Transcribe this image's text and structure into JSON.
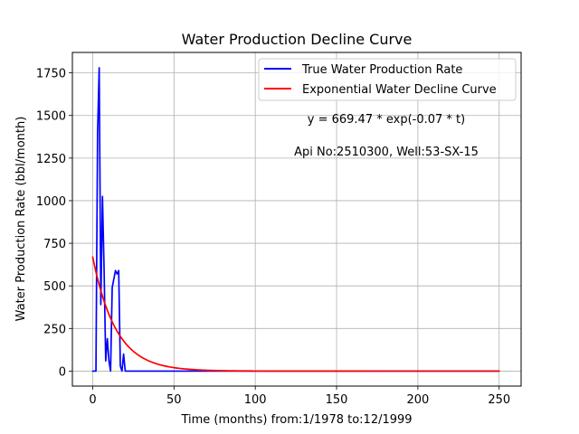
{
  "chart_data": {
    "type": "line",
    "title": "Water Production Decline Curve",
    "xlabel": "Time (months) from:1/1978 to:12/1999",
    "ylabel": "Water Production Rate (bbl/month)",
    "xlim": [
      -12.5,
      263.5
    ],
    "ylim": [
      -88,
      1870
    ],
    "xticks": [
      0,
      50,
      100,
      150,
      200,
      250
    ],
    "yticks": [
      0,
      250,
      500,
      750,
      1000,
      1250,
      1500,
      1750
    ],
    "grid": true,
    "legend_position": "top-right",
    "annotations": [
      "y = 669.47 * exp(-0.07 * t)",
      "Api No:2510300, Well:53-SX-15"
    ],
    "series": [
      {
        "name": "True Water Production Rate",
        "color": "#0000ff",
        "kind": "observed",
        "x": [
          0,
          1,
          2,
          3,
          4,
          5,
          6,
          7,
          8,
          9,
          10,
          11,
          12,
          13,
          14,
          15,
          16,
          17,
          18,
          19,
          20,
          30,
          50,
          100,
          150,
          200,
          250
        ],
        "y": [
          0,
          0,
          0,
          1400,
          1780,
          390,
          1025,
          600,
          60,
          190,
          60,
          0,
          490,
          540,
          590,
          570,
          590,
          30,
          0,
          100,
          0,
          0,
          0,
          0,
          0,
          0,
          0
        ]
      },
      {
        "name": "Exponential Water Decline Curve",
        "color": "#ff0000",
        "kind": "exponential",
        "a": 669.47,
        "b": -0.07,
        "t_range": [
          0,
          250
        ]
      }
    ]
  }
}
